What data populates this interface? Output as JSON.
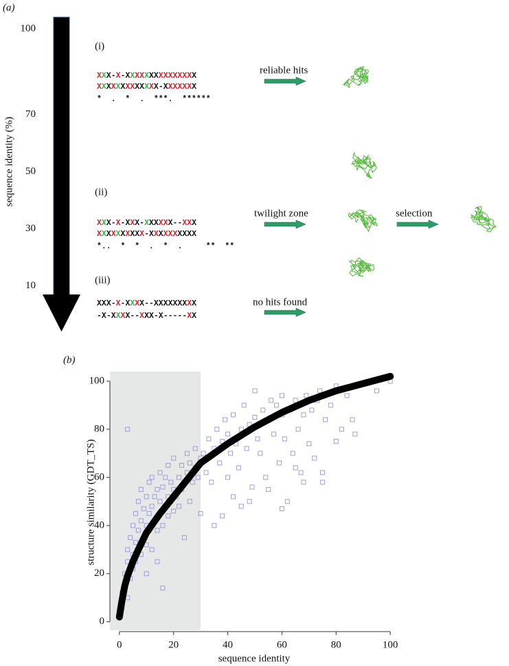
{
  "diagram": {
    "label": "(a)",
    "axis_label": "sequence identity (%)",
    "ticks": [
      100,
      70,
      50,
      30,
      10
    ],
    "rows": [
      {
        "label": "(i)",
        "lines": [
          {
            "text": "XXX-X-XXXXXXXXXXXXXXX",
            "colors": "rgk-r-kgrrgkkrrrrrrrk"
          },
          {
            "text": "XXXXXXXXXXXXX-XXXXXXX",
            "colors": "rgkrgkrrkkgrk-krrrrrk"
          }
        ],
        "stars": "*  .  *  .  ***.  ******"
      },
      {
        "label": "(ii)",
        "lines": [
          {
            "text": "XXX-X-XXX-XXXXXX--XXX",
            "colors": "rgk-r-krk-gkkrrk--rrk"
          },
          {
            "text": "XXXXXXXXXX-XXXXXXXXXX",
            "colors": "rgkrgkrkkr-krkrrrkkkk"
          }
        ],
        "stars": "*..  *  *  .  *  .     **  **"
      },
      {
        "label": "(iii)",
        "lines": [
          {
            "text": "XXX-X-XXXX--XXXXXXXXX",
            "colors": "kkk-r-kgrk--kkkkkkkrk"
          },
          {
            "text": "-X-XXXX--XXX-X-----XX",
            "colors": "-k-kgrk--rkk-k-----rk"
          }
        ]
      }
    ],
    "arrows": [
      "reliable hits",
      "twilight zone",
      "selection",
      "no hits found"
    ]
  },
  "chart_data": {
    "type": "scatter",
    "label": "(b)",
    "x_label": "sequence identity",
    "y_label": "structure similarity (GDT_TS)",
    "xlim": [
      -3.5,
      103
    ],
    "ylim": [
      -3.5,
      104
    ],
    "xticks": [
      0,
      20,
      40,
      60,
      80,
      100
    ],
    "yticks": [
      0,
      20,
      40,
      60,
      80,
      100
    ],
    "highlight_x": [
      -3.5,
      30
    ],
    "highlight_color": "#e6e7e7",
    "series": [
      {
        "color": "#9d9dd8",
        "x": [
          0,
          0,
          1,
          1,
          2,
          2,
          3,
          3,
          3,
          4,
          4,
          5,
          5,
          5,
          6,
          6,
          6,
          7,
          7,
          7,
          8,
          8,
          8,
          9,
          9,
          10,
          10,
          10,
          11,
          11,
          11,
          12,
          12,
          12,
          13,
          13,
          14,
          14,
          15,
          15,
          15,
          16,
          16,
          17,
          17,
          18,
          18,
          18,
          19,
          19,
          20,
          20,
          20,
          21,
          22,
          22,
          23,
          23,
          24,
          24,
          25,
          25,
          26,
          26,
          27,
          28,
          28,
          29,
          30,
          30,
          3,
          14,
          16,
          10,
          31,
          32,
          33,
          34,
          35,
          36,
          37,
          38,
          39,
          40,
          40,
          41,
          42,
          43,
          44,
          45,
          46,
          47,
          48,
          49,
          50,
          50,
          51,
          52,
          53,
          54,
          55,
          56,
          57,
          58,
          59,
          60,
          60,
          61,
          62,
          63,
          64,
          65,
          66,
          67,
          68,
          69,
          70,
          71,
          72,
          73,
          74,
          75,
          76,
          78,
          80,
          82,
          84,
          86,
          87,
          95,
          100,
          45,
          48,
          60,
          68,
          75,
          35,
          38,
          42,
          55,
          65,
          80
        ],
        "values": [
          2,
          5,
          8,
          12,
          15,
          20,
          10,
          25,
          30,
          18,
          35,
          22,
          28,
          40,
          25,
          33,
          45,
          30,
          38,
          50,
          28,
          42,
          55,
          35,
          47,
          32,
          40,
          52,
          38,
          45,
          58,
          30,
          48,
          60,
          42,
          52,
          38,
          55,
          45,
          50,
          62,
          40,
          56,
          48,
          60,
          44,
          52,
          65,
          50,
          58,
          46,
          55,
          68,
          52,
          48,
          60,
          55,
          65,
          35,
          58,
          62,
          70,
          50,
          66,
          58,
          64,
          72,
          60,
          68,
          45,
          80,
          25,
          14,
          20,
          70,
          62,
          76,
          58,
          72,
          80,
          66,
          75,
          84,
          60,
          78,
          70,
          86,
          74,
          64,
          80,
          90,
          72,
          82,
          56,
          85,
          96,
          76,
          70,
          88,
          60,
          84,
          92,
          78,
          90,
          66,
          86,
          94,
          76,
          50,
          88,
          70,
          92,
          80,
          62,
          86,
          94,
          74,
          88,
          68,
          92,
          96,
          58,
          84,
          90,
          98,
          80,
          94,
          84,
          78,
          96,
          100,
          48,
          50,
          47,
          58,
          62,
          40,
          44,
          52,
          55,
          64,
          75
        ]
      }
    ],
    "fit": {
      "color": "#000000",
      "x": [
        0,
        1,
        2,
        3,
        5,
        7,
        10,
        15,
        20,
        25,
        30,
        35,
        40,
        50,
        60,
        70,
        80,
        90,
        100
      ],
      "values": [
        2,
        9,
        15,
        19,
        25,
        30,
        37,
        45,
        52,
        59,
        66,
        70,
        74,
        81,
        87,
        92,
        96,
        99,
        102
      ]
    }
  }
}
